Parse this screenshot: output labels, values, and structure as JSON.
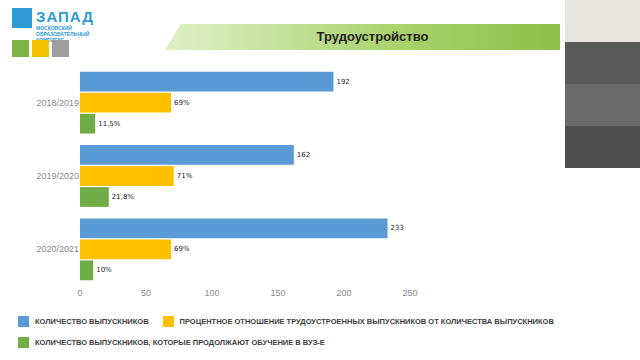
{
  "header": {
    "logo": "ЗАПАД",
    "logo_subtitle": [
      "МОСКОВСКИЙ",
      "ОБРАЗОВАТЕЛЬНЫЙ",
      "КОМПЛЕКС"
    ]
  },
  "chart_data": {
    "type": "bar",
    "title": "Трудоустройство",
    "orientation": "horizontal",
    "categories": [
      "2018/2019",
      "2019/2020",
      "2020/2021"
    ],
    "series": [
      {
        "name": "КОЛИЧЕСТВО ВЫПУСКНИКОВ",
        "color": "#5b9bd5",
        "values": [
          192,
          162,
          233
        ]
      },
      {
        "name": "ПРОЦЕНТНОЕ ОТНОШЕНИЕ ТРУДОУСТРОЕННЫХ ВЫПУСКНИКОВ ОТ КОЛИЧЕСТВА ВЫПУСКНИКОВ",
        "color": "#ffc000",
        "values": [
          69,
          71,
          69
        ],
        "value_labels": [
          "69%",
          "71%",
          "69%"
        ]
      },
      {
        "name": "КОЛИЧЕСТВО ВЫПУСКНИКОВ, КОТОРЫЕ ПРОДОЛЖАЮТ ОБУЧЕНИЕ В ВУЗ-Е",
        "color": "#70ad47",
        "values": [
          11.5,
          21.8,
          10
        ],
        "value_labels": [
          "11,5%",
          "21,8%",
          "10%"
        ]
      }
    ],
    "xlim": [
      0,
      250
    ],
    "xticks": [
      0,
      50,
      100,
      150,
      200,
      250
    ],
    "grid": false,
    "data_labels": true,
    "legend": "bottom"
  }
}
